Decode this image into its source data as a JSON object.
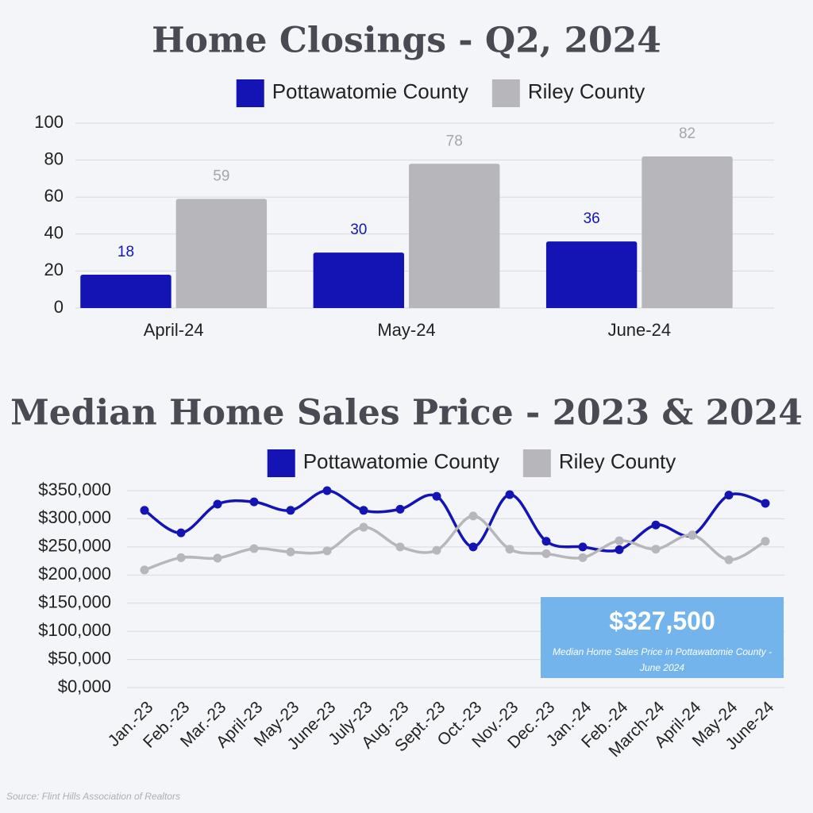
{
  "chart_data": [
    {
      "type": "bar",
      "title": "Home Closings - Q2, 2024",
      "categories": [
        "April-24",
        "May-24",
        "June-24"
      ],
      "series": [
        {
          "name": "Pottawatomie County",
          "color": "#1414b4",
          "values": [
            18,
            30,
            36
          ]
        },
        {
          "name": "Riley County",
          "color": "#b7b7bb",
          "values": [
            59,
            78,
            82
          ]
        }
      ],
      "ylim": [
        0,
        100
      ],
      "yticks": [
        0,
        20,
        40,
        60,
        80,
        100
      ],
      "grid": true
    },
    {
      "type": "line",
      "title": "Median Home Sales Price - 2023 & 2024",
      "categories": [
        "Jan.-23",
        "Feb.-23",
        "Mar.-23",
        "April-23",
        "May-23",
        "June-23",
        "July-23",
        "Aug.-23",
        "Sept.-23",
        "Oct.-23",
        "Nov.-23",
        "Dec.-23",
        "Jan.-24",
        "Feb.-24",
        "March-24",
        "April-24",
        "May-24",
        "June-24"
      ],
      "series": [
        {
          "name": "Pottawatomie County",
          "color": "#1414b4",
          "values": [
            315000,
            275000,
            326000,
            330000,
            315000,
            350000,
            315000,
            317000,
            340000,
            250000,
            343000,
            260000,
            250000,
            245000,
            289000,
            271000,
            342000,
            327500
          ]
        },
        {
          "name": "Riley County",
          "color": "#b7b7bb",
          "values": [
            209000,
            231000,
            230000,
            247000,
            241000,
            243000,
            285000,
            250000,
            244000,
            305000,
            246000,
            238000,
            231000,
            261000,
            246000,
            271000,
            227000,
            260000
          ]
        }
      ],
      "ylim": [
        0,
        350000
      ],
      "yticks": [
        {
          "value": 0,
          "label": "$0,000"
        },
        {
          "value": 50000,
          "label": "$50,000"
        },
        {
          "value": 100000,
          "label": "$100,000"
        },
        {
          "value": 150000,
          "label": "$150,000"
        },
        {
          "value": 200000,
          "label": "$200,000"
        },
        {
          "value": 250000,
          "label": "$250,000"
        },
        {
          "value": 300000,
          "label": "$300,000"
        },
        {
          "value": 350000,
          "label": "$350,000"
        }
      ],
      "grid": true,
      "annotation_value": "$327,500",
      "annotation": "Median Home Sales Price in Pottawatomie County - June 2024"
    }
  ],
  "source": "Source: Flint Hills Association of Realtors"
}
